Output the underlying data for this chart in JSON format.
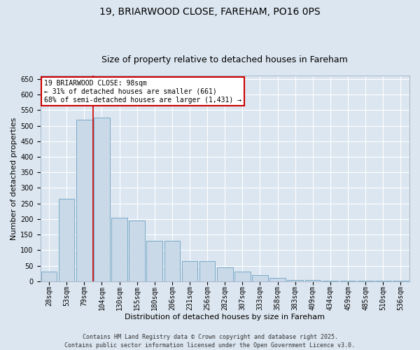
{
  "title": "19, BRIARWOOD CLOSE, FAREHAM, PO16 0PS",
  "subtitle": "Size of property relative to detached houses in Fareham",
  "xlabel": "Distribution of detached houses by size in Fareham",
  "ylabel": "Number of detached properties",
  "categories": [
    "28sqm",
    "53sqm",
    "79sqm",
    "104sqm",
    "130sqm",
    "155sqm",
    "180sqm",
    "206sqm",
    "231sqm",
    "256sqm",
    "282sqm",
    "307sqm",
    "333sqm",
    "358sqm",
    "383sqm",
    "409sqm",
    "434sqm",
    "459sqm",
    "485sqm",
    "510sqm",
    "536sqm"
  ],
  "values": [
    30,
    265,
    520,
    525,
    205,
    195,
    130,
    130,
    65,
    65,
    45,
    30,
    20,
    10,
    5,
    3,
    2,
    1,
    1,
    1,
    1
  ],
  "bar_color": "#c9d9e8",
  "bar_edge_color": "#7aaac8",
  "property_line_x": 2.5,
  "annotation_text": "19 BRIARWOOD CLOSE: 98sqm\n← 31% of detached houses are smaller (661)\n68% of semi-detached houses are larger (1,431) →",
  "annotation_box_color": "#ffffff",
  "annotation_box_edge_color": "#cc0000",
  "red_line_color": "#cc0000",
  "ylim": [
    0,
    660
  ],
  "yticks": [
    0,
    50,
    100,
    150,
    200,
    250,
    300,
    350,
    400,
    450,
    500,
    550,
    600,
    650
  ],
  "background_color": "#dce6f0",
  "plot_background_color": "#dce6f0",
  "grid_color": "#ffffff",
  "footer_line1": "Contains HM Land Registry data © Crown copyright and database right 2025.",
  "footer_line2": "Contains public sector information licensed under the Open Government Licence v3.0.",
  "title_fontsize": 10,
  "subtitle_fontsize": 9,
  "xlabel_fontsize": 8,
  "ylabel_fontsize": 8,
  "tick_fontsize": 7,
  "annotation_fontsize": 7,
  "footer_fontsize": 6
}
